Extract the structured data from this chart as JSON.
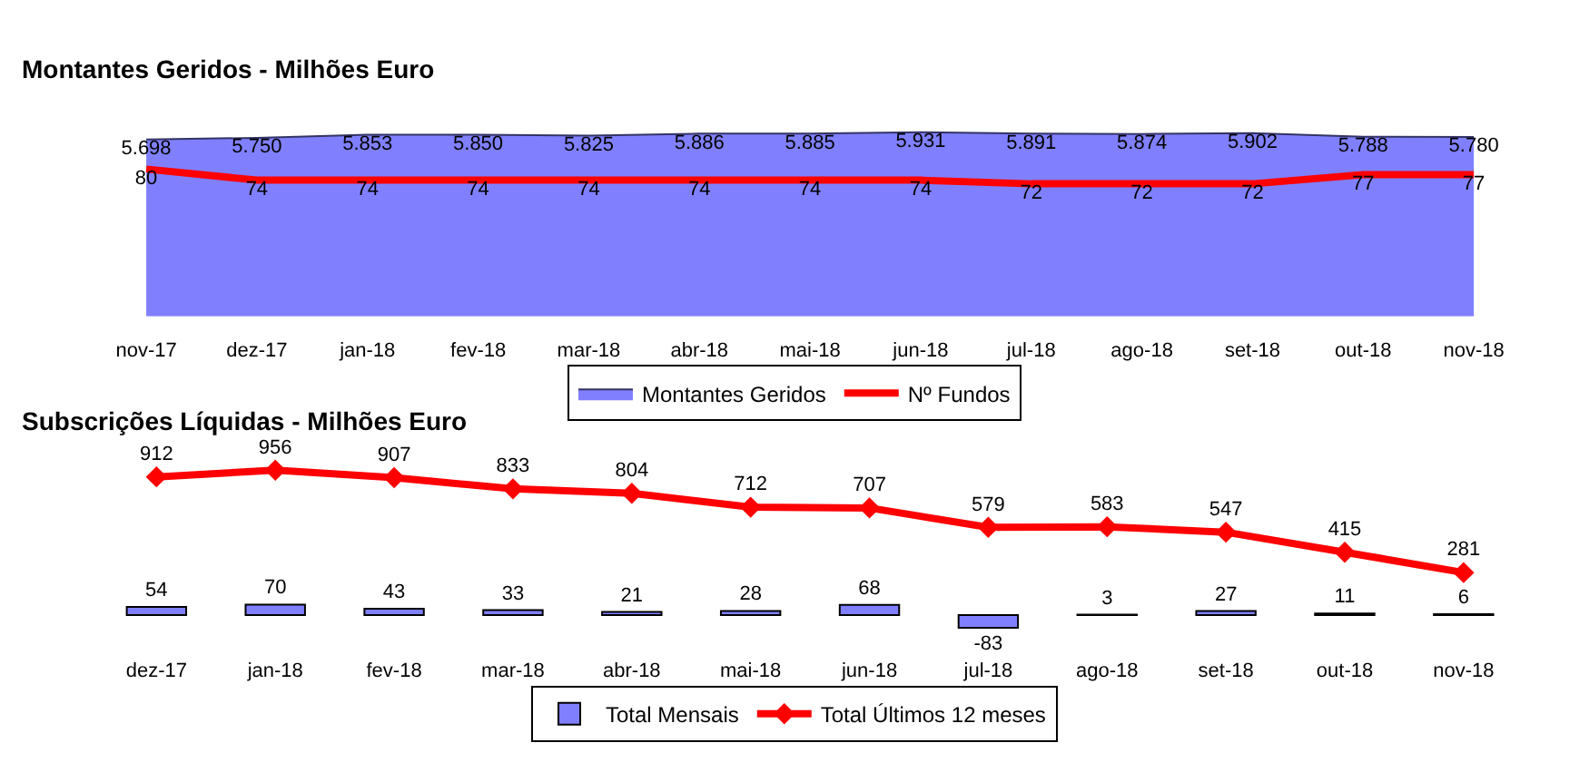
{
  "chart_data": [
    {
      "type": "area",
      "title": "Montantes Geridos - Milhões Euro",
      "categories": [
        "nov-17",
        "dez-17",
        "jan-18",
        "fev-18",
        "mar-18",
        "abr-18",
        "mai-18",
        "jun-18",
        "jul-18",
        "ago-18",
        "set-18",
        "out-18",
        "nov-18"
      ],
      "series": [
        {
          "name": "Montantes Geridos",
          "color": "#8080ff",
          "values": [
            5698,
            5750,
            5853,
            5850,
            5825,
            5886,
            5885,
            5931,
            5891,
            5874,
            5902,
            5788,
            5780
          ],
          "value_labels": [
            "5.698",
            "5.750",
            "5.853",
            "5.850",
            "5.825",
            "5.886",
            "5.885",
            "5.931",
            "5.891",
            "5.874",
            "5.902",
            "5.788",
            "5.780"
          ]
        },
        {
          "name": "Nº Fundos",
          "type": "line",
          "color": "#ff0000",
          "axis": "y2",
          "marker": "none",
          "values": [
            80,
            74,
            74,
            74,
            74,
            74,
            74,
            74,
            72,
            72,
            72,
            77,
            77
          ]
        }
      ],
      "data_labels": true,
      "legend": "bottom",
      "tick_labels": "x"
    },
    {
      "type": "bar",
      "title": "Subscrições Líquidas - Milhões Euro",
      "categories": [
        "dez-17",
        "jan-18",
        "fev-18",
        "mar-18",
        "abr-18",
        "mai-18",
        "jun-18",
        "jul-18",
        "ago-18",
        "set-18",
        "out-18",
        "nov-18"
      ],
      "series": [
        {
          "name": "Total Mensais",
          "color": "#8080ff",
          "values": [
            54,
            70,
            43,
            33,
            21,
            28,
            68,
            -83,
            3,
            27,
            11,
            6
          ]
        },
        {
          "name": "Total Últimos 12 meses",
          "type": "line",
          "color": "#ff0000",
          "marker": "diamond",
          "values": [
            912,
            956,
            907,
            833,
            804,
            712,
            707,
            579,
            583,
            547,
            415,
            281
          ]
        }
      ],
      "data_labels": true,
      "legend": "bottom",
      "tick_labels": "x"
    }
  ]
}
